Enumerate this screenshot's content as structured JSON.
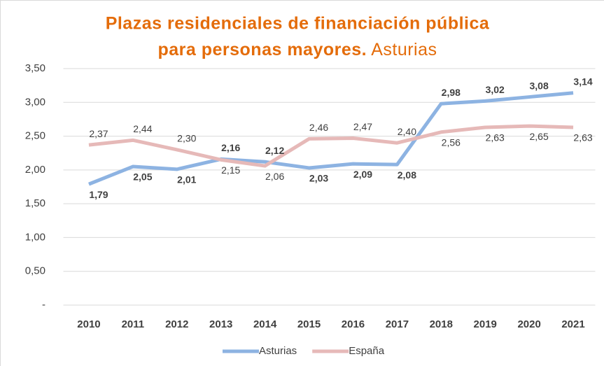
{
  "chart_data": {
    "type": "line",
    "title": [
      "Plazas residenciales de financiación pública",
      "para personas mayores."
    ],
    "subtitle": "Asturias",
    "categories": [
      "2010",
      "2011",
      "2012",
      "2013",
      "2014",
      "2015",
      "2016",
      "2017",
      "2018",
      "2019",
      "2020",
      "2021"
    ],
    "series": [
      {
        "name": "Asturias",
        "color": "#8db3e2",
        "values": [
          1.79,
          2.05,
          2.01,
          2.16,
          2.12,
          2.03,
          2.09,
          2.08,
          2.98,
          3.02,
          3.08,
          3.14
        ],
        "value_labels": [
          "1,79",
          "2,05",
          "2,01",
          "2,16",
          "2,12",
          "2,03",
          "2,09",
          "2,08",
          "2,98",
          "3,02",
          "3,08",
          "3,14"
        ]
      },
      {
        "name": "España",
        "color": "#e6b9b8",
        "values": [
          2.37,
          2.44,
          2.3,
          2.15,
          2.06,
          2.46,
          2.47,
          2.4,
          2.56,
          2.63,
          2.65,
          2.63
        ],
        "value_labels": [
          "2,37",
          "2,44",
          "2,30",
          "2,15",
          "2,06",
          "2,46",
          "2,47",
          "2,40",
          "2,56",
          "2,63",
          "2,65",
          "2,63"
        ]
      }
    ],
    "ylim": [
      0,
      3.5
    ],
    "yticks": [
      {
        "value": 0,
        "label": "-"
      },
      {
        "value": 0.5,
        "label": "0,50"
      },
      {
        "value": 1,
        "label": "1,00"
      },
      {
        "value": 1.5,
        "label": "1,50"
      },
      {
        "value": 2,
        "label": "2,00"
      },
      {
        "value": 2.5,
        "label": "2,50"
      },
      {
        "value": 3,
        "label": "3,00"
      },
      {
        "value": 3.5,
        "label": "3,50"
      }
    ],
    "grid": true,
    "legend": "bottom",
    "title_color": "#e46c0a"
  }
}
